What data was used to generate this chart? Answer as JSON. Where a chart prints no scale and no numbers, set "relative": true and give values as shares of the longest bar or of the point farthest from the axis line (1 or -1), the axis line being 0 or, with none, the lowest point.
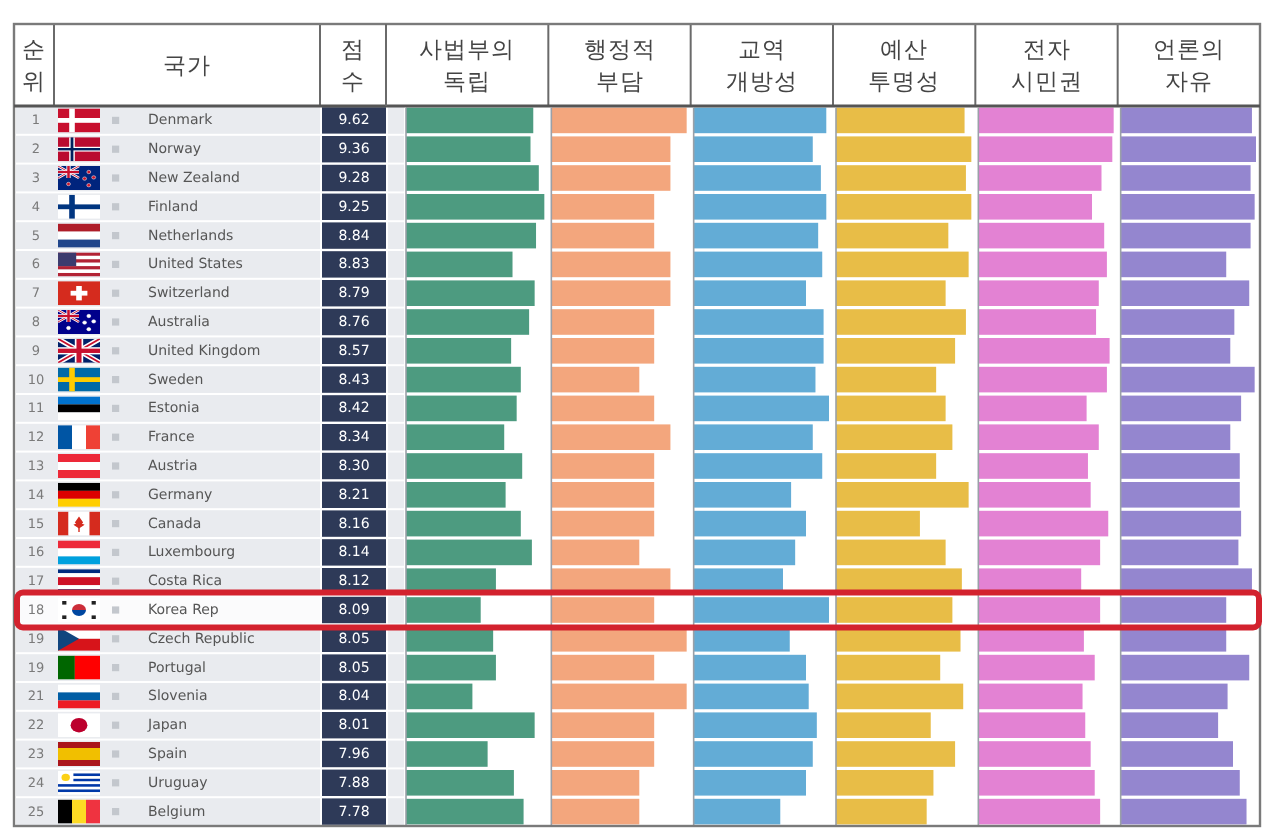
{
  "chart_data": [
    {
      "type": "heatmap",
      "ylabel": "순위",
      "y2label": "국가",
      "categories": [
        "점수"
      ],
      "y_categories": [
        "1",
        "2",
        "3",
        "4",
        "5",
        "6",
        "7",
        "8",
        "9",
        "10",
        "11",
        "12",
        "13",
        "14",
        "15",
        "16",
        "17",
        "18",
        "19",
        "19",
        "21",
        "22",
        "23",
        "24",
        "25"
      ],
      "y2_categories": [
        "Denmark",
        "Norway",
        "New Zealand",
        "Finland",
        "Netherlands",
        "United States",
        "Switzerland",
        "Australia",
        "United Kingdom",
        "Sweden",
        "Estonia",
        "France",
        "Austria",
        "Germany",
        "Canada",
        "Luxembourg",
        "Costa Rica",
        "Korea Rep",
        "Czech Republic",
        "Portugal",
        "Slovenia",
        "Japan",
        "Spain",
        "Uruguay",
        "Belgium"
      ],
      "cells": [
        [
          9.62
        ],
        [
          9.36
        ],
        [
          9.28
        ],
        [
          9.25
        ],
        [
          8.84
        ],
        [
          8.83
        ],
        [
          8.79
        ],
        [
          8.76
        ],
        [
          8.57
        ],
        [
          8.43
        ],
        [
          8.42
        ],
        [
          8.34
        ],
        [
          8.3
        ],
        [
          8.21
        ],
        [
          8.16
        ],
        [
          8.14
        ],
        [
          8.12
        ],
        [
          8.09
        ],
        [
          8.05
        ],
        [
          8.05
        ],
        [
          8.04
        ],
        [
          8.01
        ],
        [
          7.96
        ],
        [
          7.88
        ],
        [
          7.78
        ]
      ],
      "cell_labels": [
        [
          "9.62"
        ],
        [
          "9.36"
        ],
        [
          "9.28"
        ],
        [
          "9.25"
        ],
        [
          "8.84"
        ],
        [
          "8.83"
        ],
        [
          "8.79"
        ],
        [
          "8.76"
        ],
        [
          "8.57"
        ],
        [
          "8.43"
        ],
        [
          "8.42"
        ],
        [
          "8.34"
        ],
        [
          "8.30"
        ],
        [
          "8.21"
        ],
        [
          "8.16"
        ],
        [
          "8.14"
        ],
        [
          "8.12"
        ],
        [
          "8.09"
        ],
        [
          "8.05"
        ],
        [
          "8.05"
        ],
        [
          "8.04"
        ],
        [
          "8.01"
        ],
        [
          "7.96"
        ],
        [
          "7.88"
        ],
        [
          "7.78"
        ]
      ],
      "color": "#2e3a58"
    },
    {
      "type": "bar",
      "orientation": "horizontal",
      "relative": true,
      "title": "사법부의 독립",
      "color": "#4d9b80",
      "categories": [
        null,
        null,
        null,
        null,
        null,
        null,
        null,
        null,
        null,
        null,
        null,
        null,
        null,
        null,
        null,
        null,
        null,
        null,
        null,
        null,
        null,
        null,
        null,
        null,
        null
      ],
      "values": [
        0.92,
        0.9,
        0.96,
        1.0,
        0.94,
        0.77,
        0.93,
        0.89,
        0.76,
        0.83,
        0.8,
        0.71,
        0.84,
        0.72,
        0.83,
        0.91,
        0.65,
        0.54,
        0.63,
        0.65,
        0.48,
        0.93,
        0.59,
        0.78,
        0.85
      ]
    },
    {
      "type": "bar",
      "orientation": "horizontal",
      "relative": true,
      "title": "행정적 부담",
      "color": "#f3a67d",
      "categories": [
        null,
        null,
        null,
        null,
        null,
        null,
        null,
        null,
        null,
        null,
        null,
        null,
        null,
        null,
        null,
        null,
        null,
        null,
        null,
        null,
        null,
        null,
        null,
        null,
        null
      ],
      "values": [
        1.0,
        0.88,
        0.88,
        0.76,
        0.76,
        0.88,
        0.88,
        0.76,
        0.76,
        0.65,
        0.76,
        0.88,
        0.76,
        0.76,
        0.76,
        0.65,
        0.88,
        0.76,
        1.0,
        0.76,
        1.0,
        0.76,
        0.76,
        0.65,
        0.65
      ]
    },
    {
      "type": "bar",
      "orientation": "horizontal",
      "relative": true,
      "title": "교역 개방성",
      "color": "#63acd6",
      "categories": [
        null,
        null,
        null,
        null,
        null,
        null,
        null,
        null,
        null,
        null,
        null,
        null,
        null,
        null,
        null,
        null,
        null,
        null,
        null,
        null,
        null,
        null,
        null,
        null,
        null
      ],
      "values": [
        0.98,
        0.88,
        0.94,
        0.98,
        0.92,
        0.95,
        0.83,
        0.96,
        0.96,
        0.9,
        1.0,
        0.88,
        0.95,
        0.72,
        0.83,
        0.75,
        0.66,
        1.0,
        0.71,
        0.83,
        0.85,
        0.91,
        0.88,
        0.83,
        0.64
      ]
    },
    {
      "type": "bar",
      "orientation": "horizontal",
      "relative": true,
      "title": "예산 투명성",
      "color": "#e8bd47",
      "categories": [
        null,
        null,
        null,
        null,
        null,
        null,
        null,
        null,
        null,
        null,
        null,
        null,
        null,
        null,
        null,
        null,
        null,
        null,
        null,
        null,
        null,
        null,
        null,
        null,
        null
      ],
      "values": [
        0.95,
        1.0,
        0.96,
        1.0,
        0.83,
        0.98,
        0.81,
        0.96,
        0.88,
        0.74,
        0.81,
        0.86,
        0.74,
        0.98,
        0.62,
        0.81,
        0.93,
        0.86,
        0.92,
        0.77,
        0.94,
        0.7,
        0.88,
        0.72,
        0.67
      ]
    },
    {
      "type": "bar",
      "orientation": "horizontal",
      "relative": true,
      "title": "전자 시민권",
      "color": "#e382d3",
      "categories": [
        null,
        null,
        null,
        null,
        null,
        null,
        null,
        null,
        null,
        null,
        null,
        null,
        null,
        null,
        null,
        null,
        null,
        null,
        null,
        null,
        null,
        null,
        null,
        null,
        null
      ],
      "values": [
        1.0,
        0.99,
        0.91,
        0.84,
        0.93,
        0.95,
        0.89,
        0.87,
        0.97,
        0.95,
        0.8,
        0.89,
        0.81,
        0.83,
        0.96,
        0.9,
        0.76,
        0.9,
        0.78,
        0.86,
        0.77,
        0.79,
        0.83,
        0.86,
        0.9
      ]
    },
    {
      "type": "bar",
      "orientation": "horizontal",
      "relative": true,
      "title": "언론의 자유",
      "color": "#9486cf",
      "categories": [
        null,
        null,
        null,
        null,
        null,
        null,
        null,
        null,
        null,
        null,
        null,
        null,
        null,
        null,
        null,
        null,
        null,
        null,
        null,
        null,
        null,
        null,
        null,
        null,
        null
      ],
      "values": [
        0.97,
        1.0,
        0.96,
        0.99,
        0.96,
        0.78,
        0.95,
        0.84,
        0.81,
        0.99,
        0.89,
        0.81,
        0.88,
        0.88,
        0.89,
        0.87,
        0.97,
        0.78,
        0.78,
        0.95,
        0.79,
        0.72,
        0.83,
        0.88,
        0.93
      ]
    }
  ]
}
